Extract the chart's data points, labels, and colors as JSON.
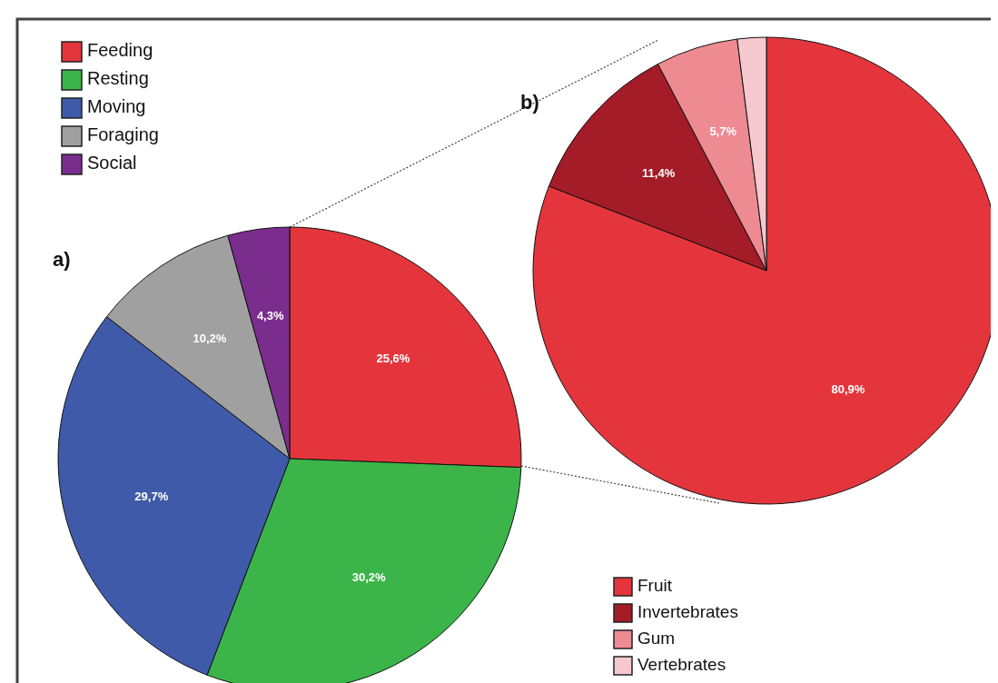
{
  "chart_data": [
    {
      "type": "pie",
      "categories": [
        "Feeding",
        "Resting",
        "Moving",
        "Foraging",
        "Social"
      ],
      "values": [
        25.6,
        30.2,
        29.7,
        10.2,
        4.3
      ],
      "colors": [
        "#e4353c",
        "#3bb54a",
        "#3f5aa8",
        "#a0a0a0",
        "#7b2d8e"
      ],
      "value_labels": [
        "25,6%",
        "30,2%",
        "29,7%",
        "10,2%",
        "4,3%"
      ],
      "legend": "top left",
      "annotations": [
        "a)"
      ]
    },
    {
      "type": "pie",
      "categories": [
        "Fruit",
        "Invertebrates",
        "Gum",
        "Vertebrates"
      ],
      "values": [
        80.9,
        11.4,
        5.7,
        2.0
      ],
      "colors": [
        "#e4353c",
        "#a31c27",
        "#ee8a92",
        "#f6c9cf"
      ],
      "value_labels": [
        "80,9%",
        "11,4%",
        "5,7%",
        null
      ],
      "legend": "bottom left",
      "annotations": [
        "b)"
      ]
    }
  ]
}
